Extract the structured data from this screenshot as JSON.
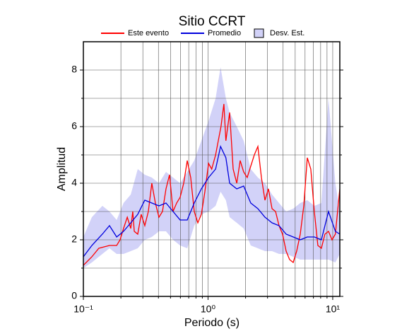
{
  "chart_data": {
    "type": "line",
    "title": "Sitio CCRT",
    "xlabel": "Periodo (s)",
    "ylabel": "Amplitud",
    "xscale": "log",
    "xlim": [
      0.1,
      11.4
    ],
    "ylim": [
      0,
      9
    ],
    "xticks": [
      {
        "value": 0.1,
        "label": "10⁻¹"
      },
      {
        "value": 1,
        "label": "10⁰"
      },
      {
        "value": 10,
        "label": "10¹"
      }
    ],
    "xminor": [
      0.2,
      0.3,
      0.4,
      0.5,
      0.6,
      0.7,
      0.8,
      0.9,
      2,
      3,
      4,
      5,
      6,
      7,
      8,
      9
    ],
    "yticks": [
      0,
      2,
      4,
      6,
      8
    ],
    "yminor": [
      1,
      3,
      5,
      7
    ],
    "grid": true,
    "legend": "top",
    "band": {
      "name": "Desv. Est.",
      "color": "#d2d2f8",
      "x": [
        0.1,
        0.117,
        0.142,
        0.162,
        0.185,
        0.21,
        0.24,
        0.273,
        0.311,
        0.354,
        0.404,
        0.46,
        0.524,
        0.597,
        0.681,
        0.775,
        0.884,
        1.01,
        1.15,
        1.26,
        1.39,
        1.49,
        1.7,
        1.93,
        2.2,
        2.51,
        2.86,
        3.26,
        3.71,
        4.23,
        4.82,
        5.49,
        6.25,
        7.12,
        8.11,
        9.25,
        10.5,
        11.4
      ],
      "lower": [
        1.0,
        1.2,
        1.5,
        1.7,
        1.5,
        1.5,
        1.6,
        1.7,
        2.0,
        2.1,
        2.3,
        2.3,
        2.0,
        1.8,
        1.7,
        2.5,
        2.9,
        3.0,
        3.2,
        3.7,
        3.4,
        2.8,
        2.6,
        2.4,
        1.8,
        1.7,
        1.6,
        1.6,
        1.5,
        1.5,
        1.4,
        1.3,
        1.3,
        1.3,
        1.3,
        1.3,
        1.2,
        1.5
      ],
      "upper": [
        2.1,
        2.8,
        3.2,
        3.0,
        2.7,
        3.3,
        3.6,
        4.5,
        4.3,
        4.2,
        4.0,
        4.4,
        4.2,
        4.0,
        4.4,
        4.8,
        5.5,
        6.2,
        7.0,
        8.1,
        7.0,
        6.5,
        6.0,
        5.5,
        4.5,
        4.2,
        4.0,
        3.6,
        3.3,
        3.0,
        3.1,
        3.3,
        3.4,
        3.2,
        3.3,
        7.0,
        4.0,
        3.0
      ]
    },
    "series": [
      {
        "name": "Este evento",
        "color": "#ff0000",
        "x": [
          0.1,
          0.117,
          0.133,
          0.162,
          0.185,
          0.197,
          0.21,
          0.225,
          0.24,
          0.249,
          0.256,
          0.273,
          0.291,
          0.311,
          0.332,
          0.354,
          0.378,
          0.404,
          0.431,
          0.46,
          0.491,
          0.524,
          0.56,
          0.597,
          0.638,
          0.681,
          0.726,
          0.775,
          0.828,
          0.884,
          0.943,
          1.01,
          1.07,
          1.15,
          1.22,
          1.27,
          1.34,
          1.39,
          1.49,
          1.59,
          1.7,
          1.81,
          1.93,
          2.06,
          2.2,
          2.35,
          2.51,
          2.68,
          2.86,
          3.05,
          3.26,
          3.48,
          3.71,
          3.96,
          4.23,
          4.51,
          4.82,
          5.14,
          5.49,
          5.86,
          6.25,
          6.67,
          7.12,
          7.6,
          8.11,
          8.66,
          9.25,
          9.87,
          10.5,
          11.4
        ],
        "values": [
          1.1,
          1.4,
          1.7,
          1.8,
          1.8,
          2.0,
          2.4,
          2.8,
          2.4,
          3.0,
          2.3,
          2.2,
          2.9,
          2.5,
          3.0,
          4.0,
          3.3,
          2.8,
          3.0,
          3.8,
          4.3,
          3.0,
          3.3,
          3.5,
          4.0,
          4.8,
          4.2,
          3.0,
          2.6,
          2.9,
          3.7,
          4.7,
          4.5,
          5.0,
          5.6,
          6.0,
          6.8,
          5.5,
          6.5,
          4.5,
          4.0,
          4.8,
          4.4,
          4.2,
          4.6,
          5.0,
          5.3,
          4.2,
          3.4,
          3.8,
          3.1,
          3.0,
          2.5,
          2.2,
          1.6,
          1.3,
          1.2,
          1.6,
          2.2,
          3.2,
          4.9,
          4.5,
          3.0,
          1.8,
          1.7,
          2.2,
          2.3,
          2.0,
          2.2,
          3.8
        ]
      },
      {
        "name": "Promedio",
        "color": "#0000dd",
        "x": [
          0.1,
          0.117,
          0.142,
          0.162,
          0.185,
          0.21,
          0.24,
          0.273,
          0.311,
          0.354,
          0.404,
          0.46,
          0.524,
          0.597,
          0.681,
          0.775,
          0.884,
          1.01,
          1.15,
          1.26,
          1.39,
          1.49,
          1.7,
          1.93,
          2.2,
          2.51,
          2.86,
          3.26,
          3.71,
          4.23,
          4.82,
          5.49,
          6.25,
          7.12,
          8.11,
          9.25,
          10.5,
          11.4
        ],
        "values": [
          1.4,
          1.8,
          2.2,
          2.5,
          2.1,
          2.3,
          2.6,
          2.9,
          3.4,
          3.3,
          3.2,
          3.3,
          3.0,
          2.7,
          2.7,
          3.3,
          3.8,
          4.2,
          4.5,
          5.3,
          4.9,
          4.0,
          3.8,
          3.9,
          3.3,
          3.1,
          2.8,
          2.6,
          2.5,
          2.2,
          2.1,
          2.0,
          2.1,
          2.1,
          2.0,
          3.0,
          2.3,
          2.2
        ]
      }
    ]
  }
}
